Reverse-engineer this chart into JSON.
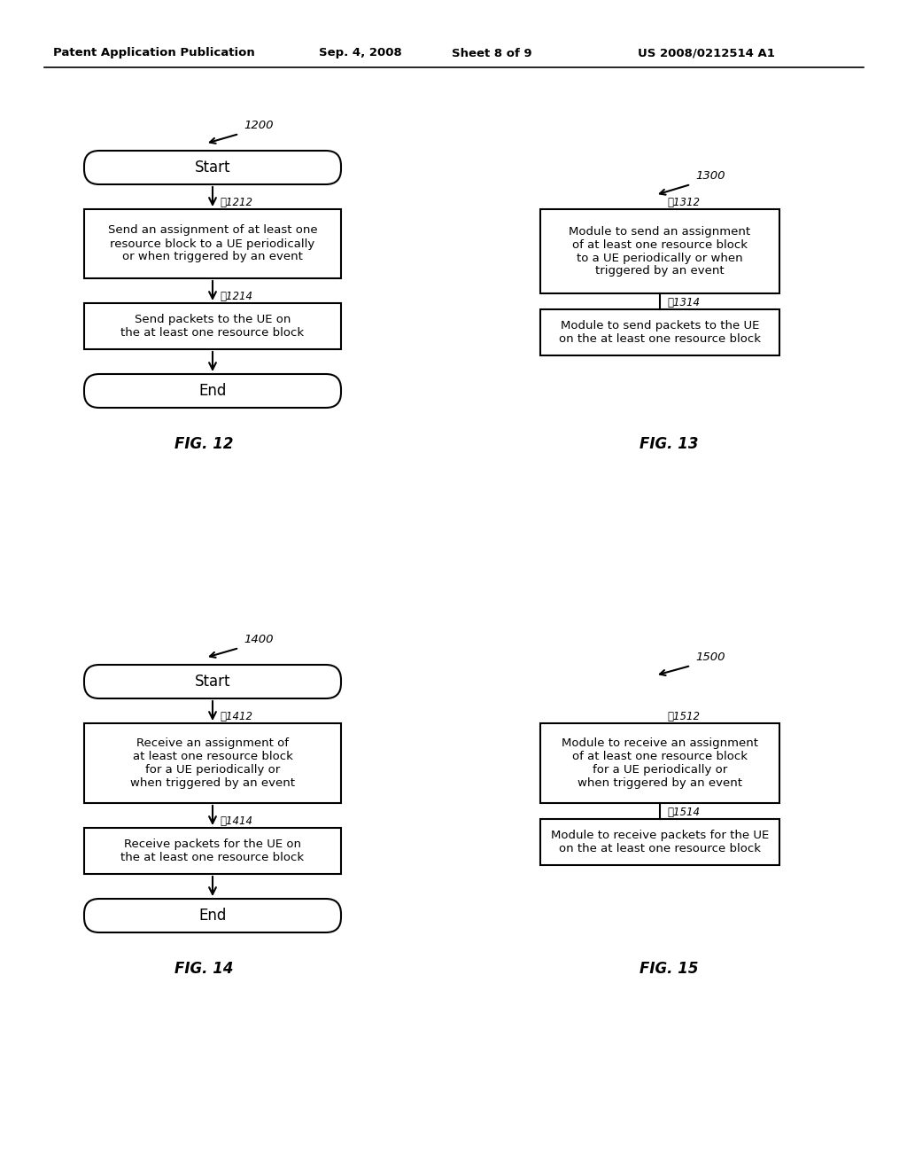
{
  "bg_color": "#ffffff",
  "header_text": "Patent Application Publication",
  "header_date": "Sep. 4, 2008",
  "header_sheet": "Sheet 8 of 9",
  "header_patent": "US 2008/0212514 A1",
  "fig12_label": "FIG. 12",
  "fig13_label": "FIG. 13",
  "fig14_label": "FIG. 14",
  "fig15_label": "FIG. 15",
  "fig12_ref": "1200",
  "fig13_ref": "1300",
  "fig14_ref": "1400",
  "fig15_ref": "1500",
  "ref_1212": "1212",
  "ref_1214": "1214",
  "ref_1312": "1312",
  "ref_1314": "1314",
  "ref_1412": "1412",
  "ref_1414": "1414",
  "ref_1512": "1512",
  "ref_1514": "1514",
  "text_start": "Start",
  "text_end": "End",
  "box_1212": "Send an assignment of at least one\nresource block to a UE periodically\nor when triggered by an event",
  "box_1214": "Send packets to the UE on\nthe at least one resource block",
  "box_1312": "Module to send an assignment\nof at least one resource block\nto a UE periodically or when\ntriggered by an event",
  "box_1314": "Module to send packets to the UE\non the at least one resource block",
  "box_1412": "Receive an assignment of\nat least one resource block\nfor a UE periodically or\nwhen triggered by an event",
  "box_1414": "Receive packets for the UE on\nthe at least one resource block",
  "box_1512": "Module to receive an assignment\nof at least one resource block\nfor a UE periodically or\nwhen triggered by an event",
  "box_1514": "Module to receive packets for the UE\non the at least one resource block"
}
